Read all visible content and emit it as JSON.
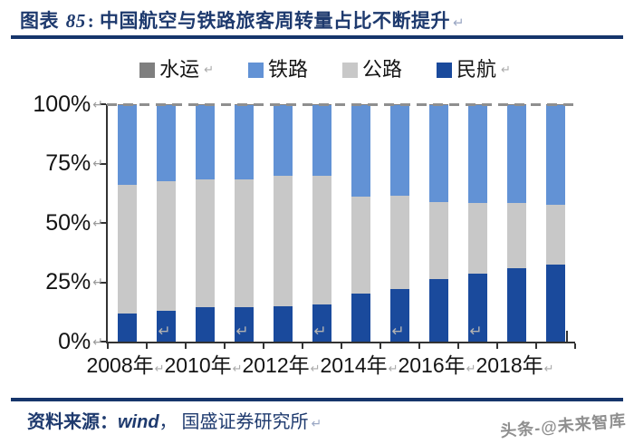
{
  "header": {
    "figure_label_prefix": "图表 ",
    "figure_number": "85",
    "figure_colon": ":  ",
    "title": "中国航空与铁路旅客周转量占比不断提升",
    "return_mark": "↵"
  },
  "legend": {
    "items": [
      {
        "label": "水运",
        "color": "#7f7f7f",
        "mark": "↵"
      },
      {
        "label": "铁路",
        "color": "#6292d5",
        "mark": ""
      },
      {
        "label": "公路",
        "color": "#c8c8c8",
        "mark": ""
      },
      {
        "label": "民航",
        "color": "#1a4a9c",
        "mark": "↵"
      }
    ]
  },
  "chart_data": {
    "type": "bar",
    "stacked": true,
    "percent": true,
    "title": "中国航空与铁路旅客周转量占比不断提升",
    "legend_position": "top",
    "categories": [
      "2008",
      "2009",
      "2010",
      "2011",
      "2012",
      "2013",
      "2014",
      "2015",
      "2016",
      "2017",
      "2018",
      "2019"
    ],
    "stack_order_bottom_to_top": [
      "民航",
      "公路",
      "铁路",
      "水运"
    ],
    "series": [
      {
        "name": "民航",
        "color": "#1a4a9c",
        "values": [
          11.7,
          13.0,
          14.6,
          14.7,
          15.0,
          15.5,
          20.4,
          22.3,
          26.3,
          28.6,
          30.8,
          32.6
        ]
      },
      {
        "name": "公路",
        "color": "#c8c8c8",
        "values": [
          54.3,
          54.5,
          53.6,
          53.8,
          54.7,
          54.3,
          40.7,
          39.0,
          32.5,
          29.9,
          27.6,
          25.1
        ]
      },
      {
        "name": "铁路",
        "color": "#6292d5",
        "values": [
          33.7,
          32.2,
          31.5,
          31.2,
          30.0,
          29.9,
          38.6,
          38.4,
          40.9,
          41.2,
          41.3,
          42.0
        ]
      },
      {
        "name": "水运",
        "color": "#7f7f7f",
        "values": [
          0.3,
          0.3,
          0.3,
          0.3,
          0.3,
          0.3,
          0.3,
          0.3,
          0.3,
          0.3,
          0.3,
          0.3
        ]
      }
    ],
    "ylim": [
      0,
      100
    ],
    "yticks": [
      {
        "text": "100%",
        "value": 100,
        "mark": "↵"
      },
      {
        "text": "75%",
        "value": 75,
        "mark": "↵"
      },
      {
        "text": "50%",
        "value": 50,
        "mark": "↵"
      },
      {
        "text": "25%",
        "value": 25,
        "mark": "↵"
      },
      {
        "text": "0%",
        "value": 0,
        "mark": "↵"
      }
    ],
    "xticks": [
      {
        "text": "2008年",
        "mark": "↵",
        "bar_index": 0
      },
      {
        "text": "2010年",
        "mark": "↵",
        "bar_index": 2
      },
      {
        "text": "2012年",
        "mark": "↵",
        "bar_index": 4
      },
      {
        "text": "2014年",
        "mark": "↵",
        "bar_index": 6
      },
      {
        "text": "2016年",
        "mark": "↵",
        "bar_index": 8
      },
      {
        "text": "2018年",
        "mark": "↵",
        "bar_index": 10
      }
    ],
    "stray_marks": {
      "glyph": "↵",
      "bar_indices": [
        1,
        3,
        5,
        7,
        9
      ]
    },
    "gridlines": {
      "top_dashed_at": 100,
      "color": "#8f8f8f",
      "horizontal_grid": false
    }
  },
  "footer": {
    "source_label": "资料来源：",
    "source_wind": "wind",
    "source_rest": "，  国盛证券研究所",
    "return_mark": "↵"
  },
  "watermark": {
    "text": "头条-@未来智库"
  }
}
